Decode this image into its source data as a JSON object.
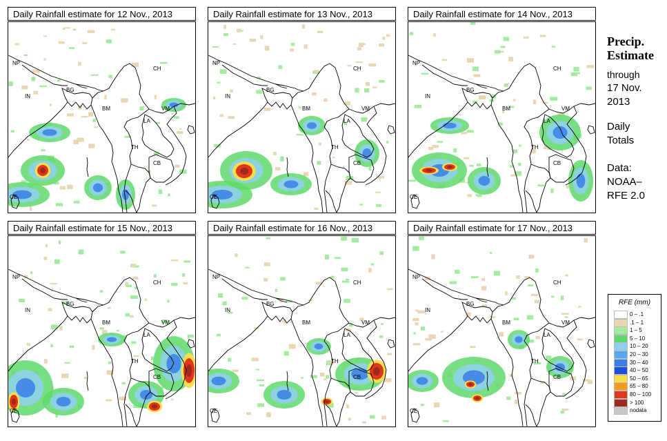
{
  "panels": [
    {
      "title": "Daily Rainfall estimate for  12 Nov., 2013"
    },
    {
      "title": "Daily Rainfall estimate for  13 Nov., 2013"
    },
    {
      "title": "Daily Rainfall estimate for  14 Nov., 2013"
    },
    {
      "title": "Daily Rainfall estimate for  15 Nov., 2013"
    },
    {
      "title": "Daily Rainfall estimate for  16 Nov., 2013"
    },
    {
      "title": "Daily Rainfall estimate for  17 Nov., 2013"
    }
  ],
  "map_labels": {
    "np": "NP",
    "ch": "CH",
    "in": "IN",
    "bg": "BG",
    "bm": "BM",
    "vm": "VM",
    "la": "LA",
    "th": "TH",
    "cb": "CB",
    "ce": "CE"
  },
  "side": {
    "title1": "Precip.",
    "title2": "Estimate",
    "l1": "through",
    "l2": "17 Nov.",
    "l3": "2013",
    "l4": "Daily",
    "l5": "Totals",
    "l6": "Data:",
    "l7": "NOAA–",
    "l8": "RFE 2.0"
  },
  "legend": {
    "title": "RFE (mm)",
    "items": [
      {
        "label": "0 – .1",
        "color": "#ffffff"
      },
      {
        "label": ".1 – 1",
        "color": "#e9d7b4"
      },
      {
        "label": "1 – 5",
        "color": "#a3ec9f"
      },
      {
        "label": "5 – 10",
        "color": "#5fd96b"
      },
      {
        "label": "10 – 20",
        "color": "#8fd0f0"
      },
      {
        "label": "20 – 30",
        "color": "#55a8ec"
      },
      {
        "label": "30 – 40",
        "color": "#3a7fe6"
      },
      {
        "label": "40 – 50",
        "color": "#1e4fdc"
      },
      {
        "label": "50 – 65",
        "color": "#f7de4a"
      },
      {
        "label": "65 – 80",
        "color": "#f39a1e"
      },
      {
        "label": "80 – 100",
        "color": "#e0361c"
      },
      {
        "label": "> 100",
        "color": "#9c2a1e"
      },
      {
        "label": "nodata",
        "color": "#c8c8c8"
      }
    ]
  }
}
